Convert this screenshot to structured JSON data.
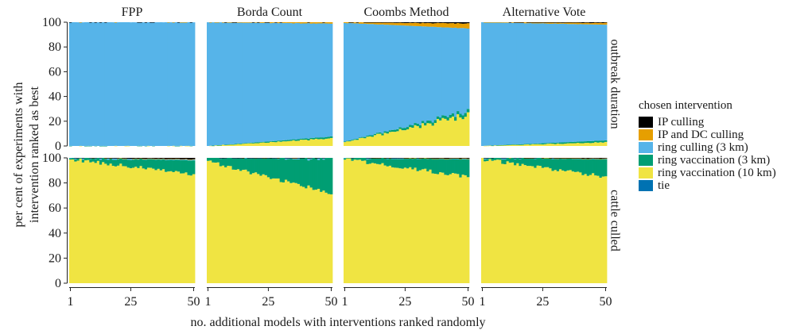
{
  "chart_data": {
    "type": "bar",
    "stacked": true,
    "facet_columns": [
      "FPP",
      "Borda Count",
      "Coombs Method",
      "Alternative Vote"
    ],
    "facet_rows": [
      "outbreak duration",
      "cattle culled"
    ],
    "xlabel": "no. additional models with interventions ranked randomly",
    "ylabel": "per cent of experiments with intervention ranked as best",
    "x_range": [
      1,
      50
    ],
    "x_ticks": [
      "1",
      "25",
      "50"
    ],
    "ylim": [
      0,
      100
    ],
    "y_ticks": [
      "0",
      "20",
      "40",
      "60",
      "80",
      "100"
    ],
    "legend": {
      "title": "chosen intervention",
      "position": "right",
      "items": [
        {
          "label": "IP culling",
          "color": "#000000"
        },
        {
          "label": "IP and DC culling",
          "color": "#E69F00"
        },
        {
          "label": "ring culling (3 km)",
          "color": "#56B4E9"
        },
        {
          "label": "ring vaccination (3 km)",
          "color": "#009E73"
        },
        {
          "label": "ring vaccination (10 km)",
          "color": "#F0E442"
        },
        {
          "label": "tie",
          "color": "#0072B2"
        }
      ]
    },
    "stack_order": [
      "ring vaccination (10 km)",
      "ring vaccination (3 km)",
      "ring culling (3 km)",
      "IP and DC culling",
      "IP culling"
    ],
    "panels": [
      {
        "column": "FPP",
        "row": "outbreak duration",
        "trend": {
          "ring vaccination (10 km)": [
            0,
            0
          ],
          "ring vaccination (3 km)": [
            0,
            0
          ],
          "IP and DC culling": [
            0,
            0
          ],
          "IP culling": [
            0,
            0
          ]
        }
      },
      {
        "column": "Borda Count",
        "row": "outbreak duration",
        "trend": {
          "ring vaccination (10 km)": [
            0,
            6
          ],
          "ring vaccination (3 km)": [
            0,
            1.5
          ],
          "IP and DC culling": [
            0,
            1
          ],
          "IP culling": [
            0,
            0
          ]
        }
      },
      {
        "column": "Coombs Method",
        "row": "outbreak duration",
        "trend": {
          "ring vaccination (10 km)": [
            3,
            25
          ],
          "ring vaccination (3 km)": [
            0.5,
            3
          ],
          "IP and DC culling": [
            0.5,
            4
          ],
          "IP culling": [
            0,
            1
          ]
        }
      },
      {
        "column": "Alternative Vote",
        "row": "outbreak duration",
        "trend": {
          "ring vaccination (10 km)": [
            0,
            3
          ],
          "ring vaccination (3 km)": [
            0,
            1.5
          ],
          "IP and DC culling": [
            0,
            1.5
          ],
          "IP culling": [
            0,
            0.5
          ]
        }
      },
      {
        "column": "FPP",
        "row": "cattle culled",
        "trend": {
          "ring vaccination (10 km)": [
            99,
            87
          ],
          "ring vaccination (3 km)": [
            1,
            11
          ],
          "IP and DC culling": [
            0,
            0.3
          ],
          "IP culling": [
            0,
            1
          ]
        }
      },
      {
        "column": "Borda Count",
        "row": "cattle culled",
        "trend": {
          "ring vaccination (10 km)": [
            97,
            72
          ],
          "ring vaccination (3 km)": [
            3,
            27
          ],
          "IP and DC culling": [
            0,
            0
          ],
          "IP culling": [
            0,
            0.5
          ]
        }
      },
      {
        "column": "Coombs Method",
        "row": "cattle culled",
        "trend": {
          "ring vaccination (10 km)": [
            99,
            85
          ],
          "ring vaccination (3 km)": [
            1,
            14
          ],
          "IP and DC culling": [
            0,
            0.3
          ],
          "IP culling": [
            0,
            0.5
          ]
        }
      },
      {
        "column": "Alternative Vote",
        "row": "cattle culled",
        "trend": {
          "ring vaccination (10 km)": [
            99,
            85
          ],
          "ring vaccination (3 km)": [
            1,
            14
          ],
          "IP and DC culling": [
            0,
            0.3
          ],
          "IP culling": [
            0,
            0.5
          ]
        }
      }
    ]
  }
}
